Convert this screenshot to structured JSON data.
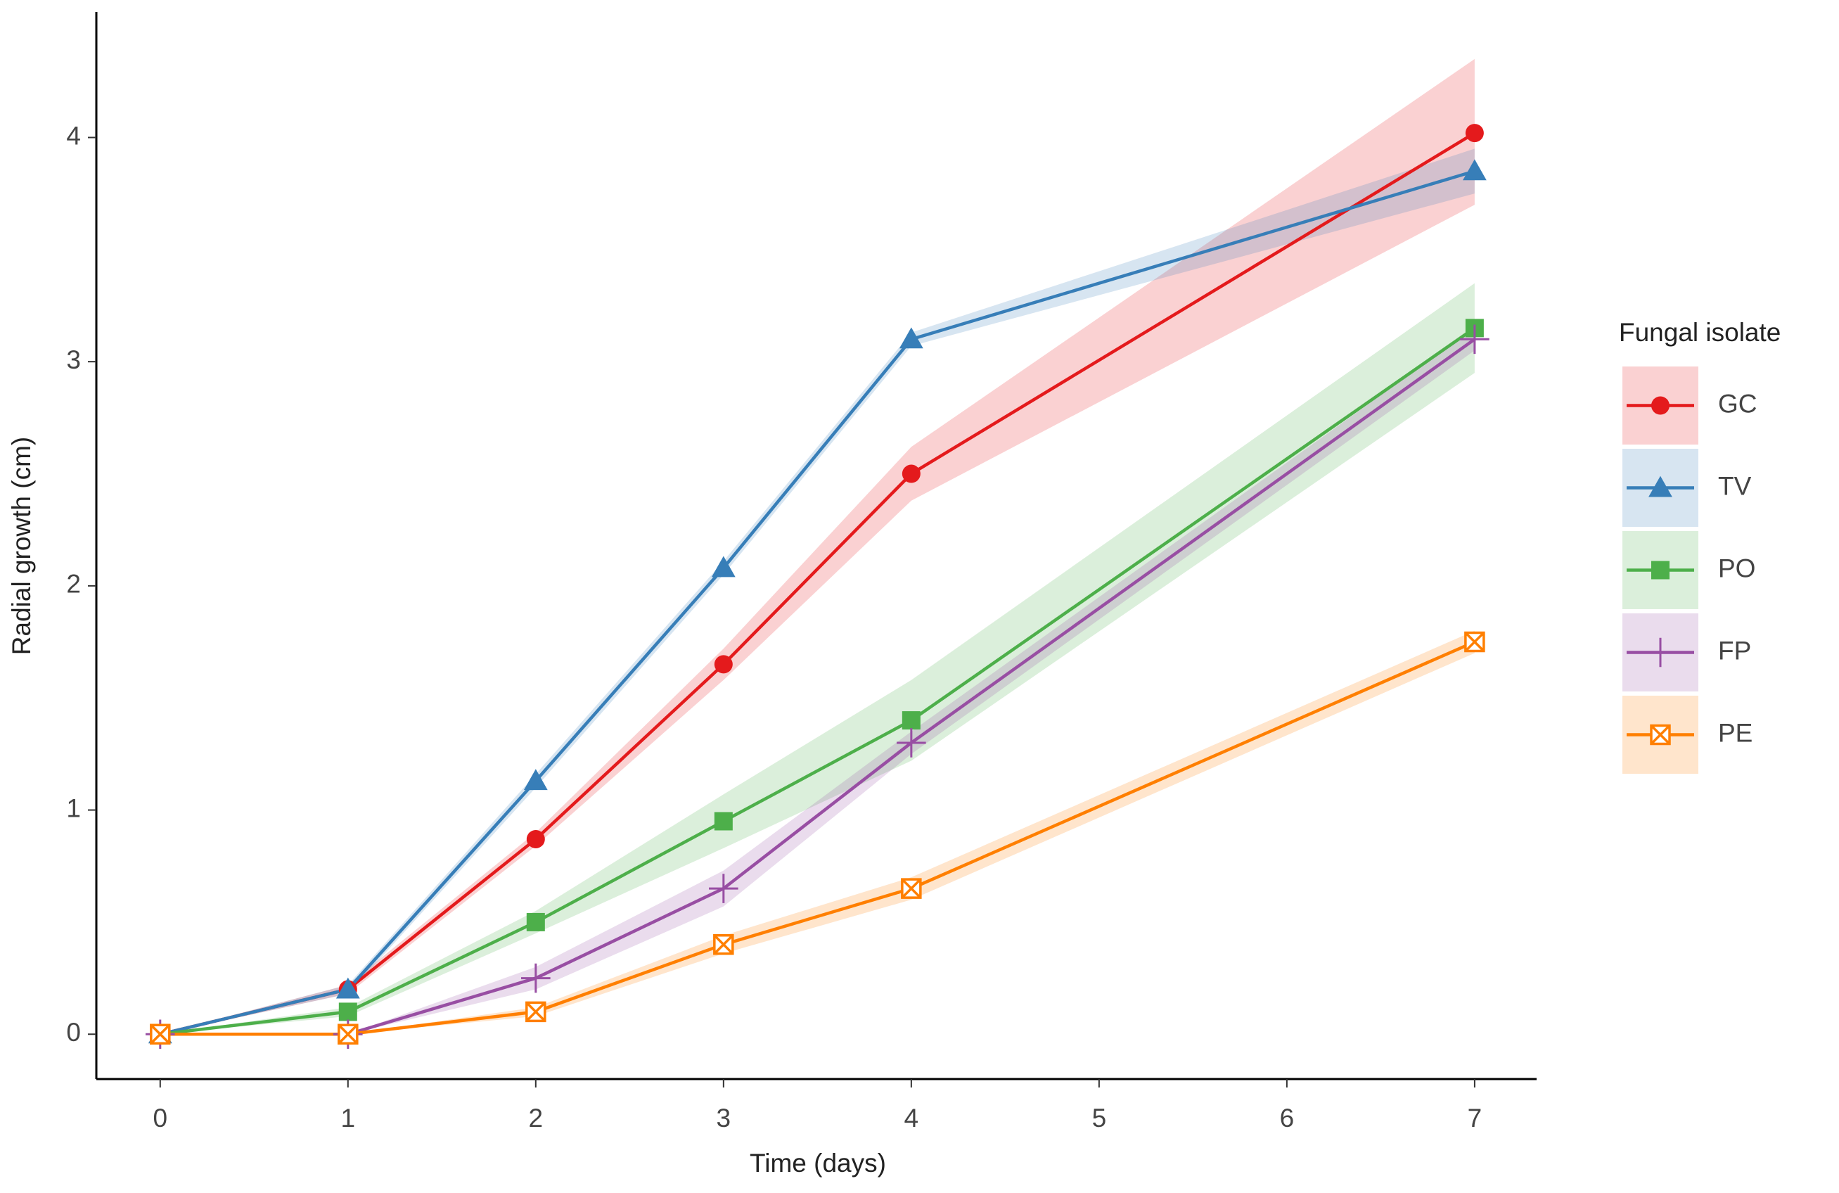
{
  "chart_data": {
    "type": "line",
    "x_label": "Time (days)",
    "y_label": "Radial growth (cm)",
    "x": [
      0,
      1,
      2,
      3,
      4,
      7
    ],
    "xlim": [
      -0.34,
      7.33
    ],
    "xticks": [
      0,
      1,
      2,
      3,
      4,
      5,
      6,
      7
    ],
    "ylim": [
      -0.2,
      4.56
    ],
    "yticks": [
      0,
      1,
      2,
      3,
      4
    ],
    "legend_title": "Fungal isolate",
    "legend": "right",
    "band_opacity": 0.2,
    "series": [
      {
        "name": "GC",
        "color": "#e41a1c",
        "marker": "circle",
        "values": [
          0,
          0.2,
          0.87,
          1.65,
          2.5,
          4.02
        ],
        "lower": [
          0,
          0.18,
          0.84,
          1.58,
          2.38,
          3.7
        ],
        "upper": [
          0,
          0.22,
          0.9,
          1.72,
          2.62,
          4.35
        ]
      },
      {
        "name": "TV",
        "color": "#377eb8",
        "marker": "triangle",
        "values": [
          0,
          0.2,
          1.13,
          2.08,
          3.1,
          3.85
        ],
        "lower": [
          0,
          0.18,
          1.1,
          2.05,
          3.07,
          3.75
        ],
        "upper": [
          0,
          0.22,
          1.16,
          2.11,
          3.13,
          3.95
        ]
      },
      {
        "name": "PO",
        "color": "#4daf4a",
        "marker": "square",
        "values": [
          0,
          0.1,
          0.5,
          0.95,
          1.4,
          3.15
        ],
        "lower": [
          0,
          0.08,
          0.45,
          0.83,
          1.22,
          2.95
        ],
        "upper": [
          0,
          0.12,
          0.55,
          1.07,
          1.58,
          3.35
        ]
      },
      {
        "name": "FP",
        "color": "#984ea3",
        "marker": "plus",
        "values": [
          0,
          0,
          0.25,
          0.65,
          1.3,
          3.1
        ],
        "lower": [
          0,
          0,
          0.2,
          0.57,
          1.25,
          3.05
        ],
        "upper": [
          0,
          0,
          0.3,
          0.73,
          1.35,
          3.15
        ]
      },
      {
        "name": "PE",
        "color": "#ff7f00",
        "marker": "boxx",
        "values": [
          0,
          0,
          0.1,
          0.4,
          0.65,
          1.75
        ],
        "lower": [
          0,
          0,
          0.08,
          0.36,
          0.6,
          1.7
        ],
        "upper": [
          0,
          0,
          0.12,
          0.44,
          0.7,
          1.8
        ]
      }
    ]
  }
}
